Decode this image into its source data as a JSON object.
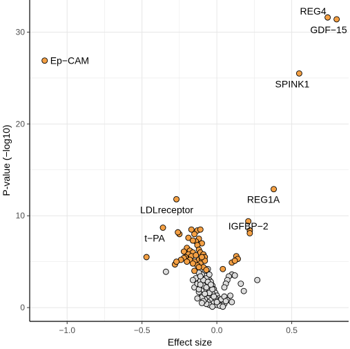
{
  "chart_data": {
    "type": "scatter",
    "title": "",
    "xlabel": "Effect size",
    "ylabel": "P-value (−log10)",
    "xlim": [
      -1.25,
      0.88
    ],
    "ylim": [
      -1.5,
      33.5
    ],
    "x_ticks": [
      -1.0,
      -0.5,
      0.0,
      0.5
    ],
    "x_tick_labels": [
      "−1.0",
      "−0.5",
      "0.0",
      "0.5"
    ],
    "y_ticks": [
      0,
      10,
      20,
      30
    ],
    "y_tick_labels": [
      "0",
      "10",
      "20",
      "30"
    ],
    "grid": true,
    "legend": "none",
    "colors": {
      "significant": "#f4a044",
      "not_significant": "#dcdcdc",
      "outline": "#000000",
      "grid": "#e6e6e6"
    },
    "labels": [
      {
        "text": "REG4",
        "x": 0.74,
        "y": 31.6
      },
      {
        "text": "GDF−15",
        "x": 0.8,
        "y": 31.4
      },
      {
        "text": "Ep−CAM",
        "x": -1.15,
        "y": 26.9
      },
      {
        "text": "SPINK1",
        "x": 0.55,
        "y": 25.5
      },
      {
        "text": "REG1A",
        "x": 0.38,
        "y": 12.9
      },
      {
        "text": "LDLreceptor",
        "x": -0.27,
        "y": 11.8
      },
      {
        "text": "IGFBP−2",
        "x": 0.21,
        "y": 9.4
      },
      {
        "text": "t−PA",
        "x": -0.36,
        "y": 8.7
      }
    ],
    "series": [
      {
        "group": "significant",
        "x": [
          0.74,
          0.8,
          -1.15,
          0.55,
          0.38,
          -0.27,
          0.21,
          -0.36,
          0.22,
          0.22,
          -0.47,
          -0.25,
          -0.26,
          -0.28,
          -0.17,
          -0.13,
          -0.11,
          -0.15,
          -0.12,
          -0.14,
          -0.1,
          -0.19,
          -0.16,
          -0.13,
          -0.2,
          -0.22,
          -0.18,
          -0.16,
          -0.12,
          -0.11,
          -0.09,
          -0.08,
          -0.19,
          -0.21,
          -0.17,
          -0.14,
          -0.12,
          -0.1,
          -0.08,
          -0.15,
          -0.11,
          -0.13,
          -0.18,
          -0.22,
          -0.24,
          -0.27,
          -0.2,
          -0.16,
          -0.09,
          -0.07,
          0.04,
          0.13,
          0.14,
          0.1,
          0.12,
          -0.12,
          -0.15,
          -0.1
        ],
        "y": [
          31.6,
          31.4,
          26.9,
          25.5,
          12.9,
          11.8,
          9.4,
          8.7,
          8.4,
          8.1,
          5.5,
          8.0,
          8.2,
          4.7,
          8.5,
          8.4,
          8.5,
          8.0,
          7.5,
          7.2,
          7.0,
          7.6,
          7.3,
          6.8,
          6.5,
          6.1,
          6.2,
          6.0,
          6.3,
          6.0,
          5.8,
          5.5,
          5.8,
          5.5,
          5.6,
          5.7,
          5.2,
          5.3,
          5.1,
          5.0,
          4.8,
          4.6,
          5.2,
          5.4,
          5.2,
          5.0,
          5.0,
          4.8,
          4.4,
          4.1,
          4.2,
          5.6,
          5.3,
          4.9,
          5.1,
          4.4,
          4.0,
          5.5
        ]
      },
      {
        "group": "not_significant",
        "x": [
          -0.34,
          0.27,
          0.18,
          0.16,
          0.1,
          0.08,
          0.12,
          0.07,
          0.06,
          0.05,
          -0.06,
          -0.08,
          -0.1,
          -0.12,
          -0.14,
          -0.05,
          -0.04,
          -0.07,
          -0.09,
          -0.03,
          -0.02,
          -0.01,
          0.0,
          0.01,
          0.02,
          0.03,
          0.04,
          0.05,
          -0.15,
          -0.13,
          -0.11,
          -0.09,
          -0.07,
          -0.05,
          -0.03,
          -0.08,
          -0.06,
          -0.1,
          -0.12,
          -0.04,
          -0.02,
          0.0,
          0.02,
          0.04,
          -0.06,
          -0.08,
          -0.1,
          -0.05,
          -0.07,
          -0.09,
          -0.11,
          -0.03,
          -0.01,
          0.01,
          0.03,
          0.05,
          0.09,
          0.07,
          -0.16,
          -0.12,
          -0.08,
          -0.06,
          -0.04,
          -0.02,
          0.0,
          -0.05,
          -0.03,
          -0.07,
          -0.09,
          -0.13,
          -0.1,
          0.06,
          0.1,
          -0.11,
          -0.05
        ],
        "y": [
          3.9,
          3.0,
          1.8,
          2.6,
          3.6,
          3.4,
          3.5,
          3.0,
          2.6,
          2.2,
          4.2,
          4.0,
          3.6,
          3.8,
          3.2,
          3.0,
          2.8,
          3.2,
          2.6,
          2.4,
          2.0,
          1.6,
          1.3,
          1.0,
          0.8,
          0.6,
          0.5,
          0.4,
          2.2,
          2.6,
          2.9,
          2.4,
          2.0,
          1.8,
          1.5,
          1.2,
          1.0,
          1.4,
          1.7,
          0.8,
          0.5,
          0.3,
          0.2,
          0.1,
          0.6,
          0.9,
          1.1,
          1.6,
          2.2,
          3.0,
          3.4,
          2.0,
          1.0,
          0.7,
          0.9,
          1.2,
          1.3,
          0.8,
          3.0,
          2.0,
          1.5,
          2.8,
          2.5,
          1.2,
          0.6,
          0.3,
          0.1,
          0.4,
          0.7,
          1.0,
          0.5,
          0.7,
          0.6,
          2.5,
          3.6
        ]
      }
    ]
  }
}
